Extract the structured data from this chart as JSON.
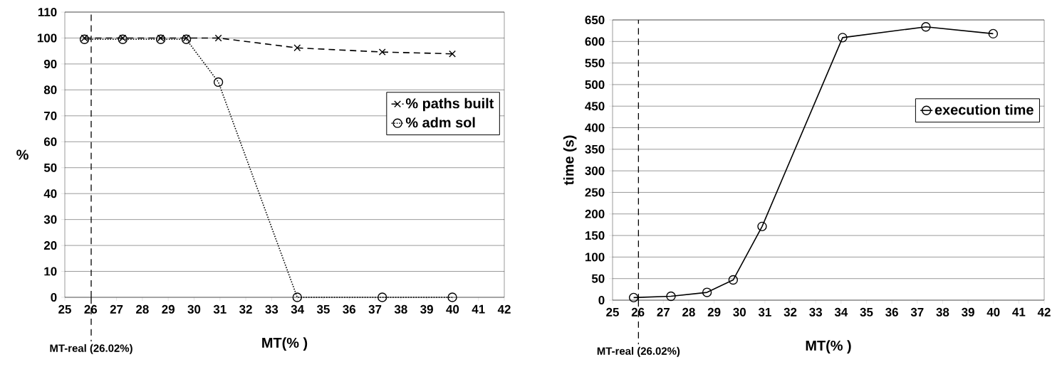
{
  "chart_data": [
    {
      "type": "line",
      "xlabel": "MT(% )",
      "ylabel": "%",
      "xlim": [
        25,
        42
      ],
      "xticks": [
        25,
        26,
        27,
        28,
        29,
        30,
        31,
        32,
        33,
        34,
        35,
        36,
        37,
        38,
        39,
        40,
        41,
        42
      ],
      "ylim": [
        0,
        110
      ],
      "yticks": [
        0,
        10,
        20,
        30,
        40,
        50,
        60,
        70,
        80,
        90,
        100,
        110
      ],
      "grid": "y",
      "legend": "right",
      "ref_lines": [
        {
          "axis": "x",
          "value": 26.02,
          "label": "MT-real (26.02%)",
          "line_style": "dashed"
        }
      ],
      "series": [
        {
          "name": "% paths built",
          "color": "#000000",
          "marker": "cross",
          "line_style": "dashed",
          "x": [
            25.76,
            27.24,
            28.71,
            29.7,
            30.94,
            33.99,
            37.28,
            39.99
          ],
          "values": [
            100,
            100,
            100,
            100,
            100,
            96.2,
            94.6,
            93.9
          ]
        },
        {
          "name": "% adm sol",
          "color": "#000000",
          "marker": "circle",
          "line_style": "dotted",
          "x": [
            25.76,
            27.24,
            28.71,
            29.7,
            30.94,
            33.99,
            37.28,
            39.99
          ],
          "values": [
            99.5,
            99.5,
            99.5,
            99.5,
            83,
            0,
            0,
            0
          ]
        }
      ]
    },
    {
      "type": "line",
      "xlabel": "MT(% )",
      "ylabel": "time (s)",
      "xlim": [
        25,
        42
      ],
      "xticks": [
        25,
        26,
        27,
        28,
        29,
        30,
        31,
        32,
        33,
        34,
        35,
        36,
        37,
        38,
        39,
        40,
        41,
        42
      ],
      "ylim": [
        0,
        650
      ],
      "yticks": [
        0,
        50,
        100,
        150,
        200,
        250,
        300,
        350,
        400,
        450,
        500,
        550,
        600,
        650
      ],
      "grid": "y",
      "legend": "right",
      "ref_lines": [
        {
          "axis": "x",
          "value": 26.02,
          "label": "MT-real (26.02%)",
          "line_style": "dashed"
        }
      ],
      "series": [
        {
          "name": "execution time",
          "color": "#000000",
          "marker": "circle",
          "line_style": "solid",
          "x": [
            25.83,
            27.3,
            28.72,
            29.75,
            30.89,
            34.06,
            37.34,
            39.99
          ],
          "values": [
            6,
            9,
            18,
            47,
            171,
            609,
            634,
            618
          ]
        }
      ]
    }
  ]
}
